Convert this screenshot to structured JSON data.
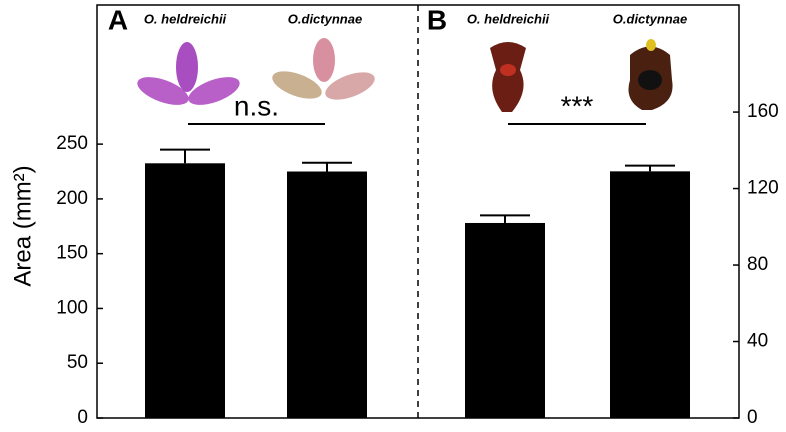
{
  "chart_data": [
    {
      "type": "bar",
      "panel_label": "A",
      "ylabel": "Area (mm²)",
      "categories": [
        "O. heldreichii",
        "O.dictynnae"
      ],
      "values": [
        232.5,
        225
      ],
      "errors": [
        12.5,
        8
      ],
      "color": "#000000",
      "ylim": [
        0,
        377
      ],
      "yticks": [
        0,
        50,
        100,
        150,
        200,
        250
      ],
      "annotation": "n.s."
    },
    {
      "type": "bar",
      "panel_label": "B",
      "categories": [
        "O. heldreichii",
        "O.dictynnae"
      ],
      "values": [
        102,
        129
      ],
      "errors": [
        4,
        3
      ],
      "color": "#000000",
      "axis": "y2",
      "y2lim": [
        0,
        216
      ],
      "y2ticks": [
        0,
        40,
        80,
        120,
        160
      ],
      "annotation": "***"
    }
  ]
}
